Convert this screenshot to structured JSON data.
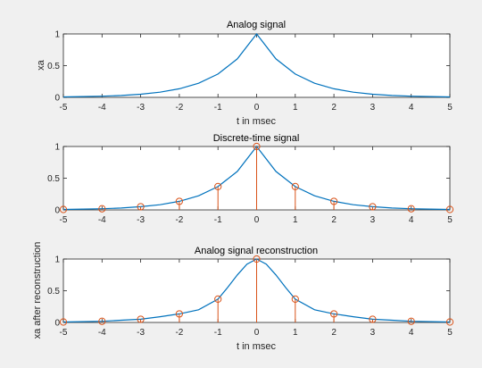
{
  "chart_data": [
    {
      "type": "line",
      "title": "Analog signal",
      "xlabel": "t in msec",
      "ylabel": "xa",
      "xlim": [
        -5,
        5
      ],
      "ylim": [
        0,
        1
      ],
      "xticks": [
        "-5",
        "-4",
        "-3",
        "-2",
        "-1",
        "0",
        "1",
        "2",
        "3",
        "4",
        "5"
      ],
      "yticks": [
        "0",
        "0.5",
        "1"
      ],
      "series": [
        {
          "x": [
            -5,
            -4.5,
            -4,
            -3.5,
            -3,
            -2.5,
            -2,
            -1.5,
            -1,
            -0.5,
            0,
            0.5,
            1,
            1.5,
            2,
            2.5,
            3,
            3.5,
            4,
            4.5,
            5
          ],
          "y": [
            0.007,
            0.012,
            0.018,
            0.03,
            0.05,
            0.082,
            0.135,
            0.223,
            0.368,
            0.607,
            1,
            0.607,
            0.368,
            0.223,
            0.135,
            0.082,
            0.05,
            0.03,
            0.018,
            0.012,
            0.007
          ],
          "color": "#0072bd"
        }
      ]
    },
    {
      "type": "stem",
      "title": "Discrete-time signal",
      "xlabel": "",
      "ylabel": "",
      "xlim": [
        -5,
        5
      ],
      "ylim": [
        0,
        1
      ],
      "xticks": [
        "-5",
        "-4",
        "-3",
        "-2",
        "-1",
        "0",
        "1",
        "2",
        "3",
        "4",
        "5"
      ],
      "yticks": [
        "0",
        "0.5",
        "1"
      ],
      "series": [
        {
          "x": [
            -5,
            -4.5,
            -4,
            -3.5,
            -3,
            -2.5,
            -2,
            -1.5,
            -1,
            -0.5,
            0,
            0.5,
            1,
            1.5,
            2,
            2.5,
            3,
            3.5,
            4,
            4.5,
            5
          ],
          "y": [
            0.007,
            0.012,
            0.018,
            0.03,
            0.05,
            0.082,
            0.135,
            0.223,
            0.368,
            0.607,
            1,
            0.607,
            0.368,
            0.223,
            0.135,
            0.082,
            0.05,
            0.03,
            0.018,
            0.012,
            0.007
          ],
          "color": "#0072bd"
        },
        {
          "x": [
            -5,
            -4,
            -3,
            -2,
            -1,
            0,
            1,
            2,
            3,
            4,
            5
          ],
          "y": [
            0.007,
            0.018,
            0.05,
            0.135,
            0.368,
            1,
            0.368,
            0.135,
            0.05,
            0.018,
            0.007
          ],
          "color": "#d95319"
        }
      ]
    },
    {
      "type": "stem",
      "title": "Analog signal reconstruction",
      "xlabel": "t in msec",
      "ylabel": "xa after reconstruction",
      "xlim": [
        -5,
        5
      ],
      "ylim": [
        0,
        1
      ],
      "xticks": [
        "-5",
        "-4",
        "-3",
        "-2",
        "-1",
        "0",
        "1",
        "2",
        "3",
        "4",
        "5"
      ],
      "yticks": [
        "0",
        "0.5",
        "1"
      ],
      "series": [
        {
          "x": [
            -5,
            -4.5,
            -4,
            -3.5,
            -3,
            -2.5,
            -2,
            -1.5,
            -1,
            -0.75,
            -0.5,
            -0.25,
            0,
            0.25,
            0.5,
            0.75,
            1,
            1.5,
            2,
            2.5,
            3,
            3.5,
            4,
            4.5,
            5
          ],
          "y": [
            0.007,
            0.012,
            0.018,
            0.035,
            0.05,
            0.09,
            0.135,
            0.2,
            0.368,
            0.55,
            0.75,
            0.92,
            1,
            0.92,
            0.75,
            0.55,
            0.368,
            0.2,
            0.135,
            0.09,
            0.05,
            0.035,
            0.018,
            0.012,
            0.007
          ],
          "color": "#0072bd"
        },
        {
          "x": [
            -5,
            -4,
            -3,
            -2,
            -1,
            0,
            1,
            2,
            3,
            4,
            5
          ],
          "y": [
            0.007,
            0.018,
            0.05,
            0.135,
            0.368,
            1,
            0.368,
            0.135,
            0.05,
            0.018,
            0.007
          ],
          "color": "#d95319"
        }
      ]
    }
  ]
}
